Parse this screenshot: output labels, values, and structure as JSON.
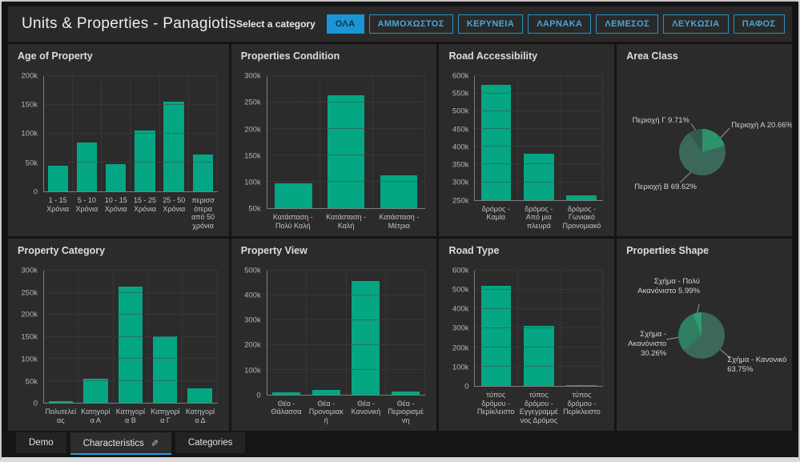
{
  "header": {
    "title": "Units & Properties - Panagiotis",
    "category_label": "Select a category",
    "categories": [
      {
        "label": "ΟΛΑ",
        "selected": true
      },
      {
        "label": "ΑΜΜΟΧΩΣΤΟΣ",
        "selected": false
      },
      {
        "label": "ΚΕΡΥΝΕΙΑ",
        "selected": false
      },
      {
        "label": "ΛΑΡΝΑΚΑ",
        "selected": false
      },
      {
        "label": "ΛΕΜΕΣΟΣ",
        "selected": false
      },
      {
        "label": "ΛΕΥΚΩΣΙΑ",
        "selected": false
      },
      {
        "label": "ΠΑΦΟΣ",
        "selected": false
      }
    ],
    "menu_icon": "hamburger-icon"
  },
  "colors": {
    "bar": "#05a683",
    "accent_blue": "#1b95d6",
    "panel_bg": "#2b2b2b",
    "pie_bright": "#2f9e71",
    "pie_medium": "#2f7f60",
    "pie_dark": "#3b685a"
  },
  "tabs": [
    {
      "label": "Demo",
      "active": false
    },
    {
      "label": "Characteristics",
      "active": true,
      "icon": "pencil-icon"
    },
    {
      "label": "Categories",
      "active": false
    }
  ],
  "chart_data": [
    {
      "type": "bar",
      "title": "Age of Property",
      "categories": [
        "1 - 15 Χρόνια",
        "5 - 10 Χρόνια",
        "10 - 15 Χρόνια",
        "15 - 25 Χρόνια",
        "25 - 50 Χρόνια",
        "περισσότερα από 50 χρόνια"
      ],
      "values": [
        44000,
        84000,
        47000,
        105000,
        155000,
        64000
      ],
      "ylim": [
        0,
        200000
      ],
      "yticks": [
        {
          "v": 0,
          "label": "0"
        },
        {
          "v": 50000,
          "label": "50k"
        },
        {
          "v": 100000,
          "label": "100k"
        },
        {
          "v": 150000,
          "label": "150k"
        },
        {
          "v": 200000,
          "label": "200k"
        }
      ]
    },
    {
      "type": "bar",
      "title": "Properties Condition",
      "categories": [
        "Κατάσταση - Πολύ Καλή",
        "Κατάσταση - Καλή",
        "Κατάσταση - Μέτρια"
      ],
      "values": [
        97000,
        263000,
        112000
      ],
      "ylim": [
        50000,
        300000
      ],
      "yticks": [
        {
          "v": 50000,
          "label": "50k"
        },
        {
          "v": 100000,
          "label": "100k"
        },
        {
          "v": 150000,
          "label": "150k"
        },
        {
          "v": 200000,
          "label": "200k"
        },
        {
          "v": 250000,
          "label": "250k"
        },
        {
          "v": 300000,
          "label": "300k"
        }
      ]
    },
    {
      "type": "bar",
      "title": "Road Accessibility",
      "categories": [
        "δρόμος - Καμία",
        "δρόμος - Από μια πλευρά",
        "δρόμος - Γωνιακό Προνομιακό"
      ],
      "values": [
        575000,
        380000,
        262000
      ],
      "ylim": [
        250000,
        600000
      ],
      "yticks": [
        {
          "v": 250000,
          "label": "250k"
        },
        {
          "v": 300000,
          "label": "300k"
        },
        {
          "v": 350000,
          "label": "350k"
        },
        {
          "v": 400000,
          "label": "400k"
        },
        {
          "v": 450000,
          "label": "450k"
        },
        {
          "v": 500000,
          "label": "500k"
        },
        {
          "v": 550000,
          "label": "550k"
        },
        {
          "v": 600000,
          "label": "600k"
        }
      ]
    },
    {
      "type": "pie",
      "title": "Area Class",
      "slices": [
        {
          "label": "Περιοχή Α",
          "pct": 20.66,
          "display": "Περιοχή Α 20.66%",
          "color": "#2e9368"
        },
        {
          "label": "Περιοχή Β",
          "pct": 69.62,
          "display": "Περιοχή Β 69.62%",
          "color": "#3b685a"
        },
        {
          "label": "Περιοχή Γ",
          "pct": 9.71,
          "display": "Περιοχή Γ 9.71%",
          "color": "#33594c"
        }
      ]
    },
    {
      "type": "bar",
      "title": "Property Category",
      "categories": [
        "Πολυτελείας",
        "Κατηγορία Α",
        "Κατηγορία Β",
        "Κατηγορία Γ",
        "Κατηγορία Δ"
      ],
      "values": [
        4000,
        55000,
        263000,
        151000,
        33000
      ],
      "ylim": [
        0,
        300000
      ],
      "yticks": [
        {
          "v": 0,
          "label": "0"
        },
        {
          "v": 50000,
          "label": "50k"
        },
        {
          "v": 100000,
          "label": "100k"
        },
        {
          "v": 150000,
          "label": "150k"
        },
        {
          "v": 200000,
          "label": "200k"
        },
        {
          "v": 250000,
          "label": "250k"
        },
        {
          "v": 300000,
          "label": "300k"
        }
      ]
    },
    {
      "type": "bar",
      "title": "Property View",
      "categories": [
        "Θέα - Θάλασσα",
        "Θέα - Προνομιακή",
        "Θέα - Κανονική",
        "Θέα - Περιορισμένη"
      ],
      "values": [
        8000,
        17000,
        457000,
        12000
      ],
      "ylim": [
        0,
        500000
      ],
      "yticks": [
        {
          "v": 0,
          "label": "0"
        },
        {
          "v": 100000,
          "label": "100k"
        },
        {
          "v": 200000,
          "label": "200k"
        },
        {
          "v": 300000,
          "label": "300k"
        },
        {
          "v": 400000,
          "label": "400k"
        },
        {
          "v": 500000,
          "label": "500k"
        }
      ]
    },
    {
      "type": "bar",
      "title": "Road Type",
      "categories": [
        "τύπος δρόμου - Περίκλειστο",
        "τύπος δρόμου - Εγγεγραμμένος Δρόμος",
        "τύπος δρόμου - Περίκλειστο"
      ],
      "values": [
        520000,
        313000,
        2500
      ],
      "ylim": [
        0,
        600000
      ],
      "yticks": [
        {
          "v": 0,
          "label": "0"
        },
        {
          "v": 100000,
          "label": "100k"
        },
        {
          "v": 200000,
          "label": "200k"
        },
        {
          "v": 300000,
          "label": "300k"
        },
        {
          "v": 400000,
          "label": "400k"
        },
        {
          "v": 500000,
          "label": "500k"
        },
        {
          "v": 600000,
          "label": "600k"
        }
      ]
    },
    {
      "type": "pie",
      "title": "Properties Shape",
      "slices": [
        {
          "label": "Σχήμα - Κανονικό",
          "pct": 63.75,
          "display": "Σχήμα - Κανονικό 63.75%",
          "color": "#3b685a"
        },
        {
          "label": "Σχήμα - Ακανόνιστο",
          "pct": 30.26,
          "display": "Σχήμα - Ακανόνιστο 30.26%",
          "color": "#2f7f60"
        },
        {
          "label": "Σχήμα - Πολύ Ακανόνιστο",
          "pct": 5.99,
          "display": "Σχήμα - Πολύ Ακανόνιστο 5.99%",
          "color": "#2f9e71"
        }
      ]
    }
  ]
}
